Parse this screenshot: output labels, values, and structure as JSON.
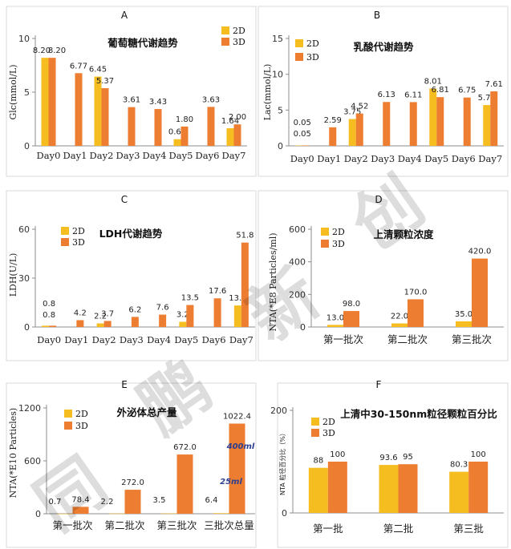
{
  "colors": {
    "series_2d": "#f5bd1f",
    "series_3d": "#ed7d31"
  },
  "watermark": "同 鹏 新 创",
  "chart_data": [
    {
      "id": "A",
      "panel_label": "A",
      "type": "bar",
      "title": "葡萄糖代谢趋势",
      "ylabel": "Glc(mmol/L)",
      "xlabel": "",
      "ylim": [
        0,
        10
      ],
      "yticks": [
        0,
        5,
        10
      ],
      "categories": [
        "Day0",
        "Day1",
        "Day2",
        "Day3",
        "Day4",
        "Day5",
        "Day6",
        "Day7"
      ],
      "series": [
        {
          "name": "2D",
          "values": [
            8.2,
            null,
            6.45,
            null,
            null,
            0.62,
            null,
            1.64
          ],
          "labels": [
            "8.20",
            "",
            "6.45",
            "",
            "",
            "0.62",
            "",
            "1.64"
          ]
        },
        {
          "name": "3D",
          "values": [
            8.2,
            6.77,
            5.37,
            3.61,
            3.43,
            1.8,
            3.63,
            2.0
          ],
          "labels": [
            "8.20",
            "6.77",
            "5.37",
            "3.61",
            "3.43",
            "1.80",
            "3.63",
            "2.00"
          ]
        }
      ],
      "legend": "top-right",
      "grid": false
    },
    {
      "id": "B",
      "panel_label": "B",
      "type": "bar",
      "title": "乳酸代谢趋势",
      "ylabel": "Lac(mmol/L)",
      "xlabel": "",
      "ylim": [
        0,
        15
      ],
      "yticks": [
        0,
        5,
        10,
        15
      ],
      "categories": [
        "Day0",
        "Day1",
        "Day2",
        "Day3",
        "Day4",
        "Day5",
        "Day6",
        "Day7"
      ],
      "series": [
        {
          "name": "2D",
          "values": [
            0.05,
            null,
            3.75,
            null,
            null,
            8.01,
            null,
            5.7
          ],
          "labels": [
            "0.05",
            "",
            "3.75",
            "",
            "",
            "8.01",
            "",
            "5.70"
          ]
        },
        {
          "name": "3D",
          "values": [
            0.05,
            2.59,
            4.52,
            6.13,
            6.11,
            6.81,
            6.75,
            7.61
          ],
          "labels": [
            "0.05",
            "2.59",
            "4.52",
            "6.13",
            "6.11",
            "6.81",
            "6.75",
            "7.61"
          ]
        }
      ],
      "legend": "top-left",
      "grid": false
    },
    {
      "id": "C",
      "panel_label": "C",
      "type": "bar",
      "title": "LDH代谢趋势",
      "ylabel": "LDH(U/L)",
      "xlabel": "",
      "ylim": [
        0,
        60
      ],
      "yticks": [
        0,
        30,
        60
      ],
      "categories": [
        "Day0",
        "Day1",
        "Day2",
        "Day3",
        "Day4",
        "Day5",
        "Day6",
        "Day7"
      ],
      "series": [
        {
          "name": "2D",
          "values": [
            0.8,
            null,
            2.2,
            null,
            null,
            3.2,
            null,
            13.2
          ],
          "labels": [
            "0.8",
            "",
            "2.2",
            "",
            "",
            "3.2",
            "",
            "13.2"
          ]
        },
        {
          "name": "3D",
          "values": [
            0.8,
            4.2,
            3.7,
            6.2,
            7.6,
            13.5,
            17.6,
            51.8
          ],
          "labels": [
            "0.8",
            "4.2",
            "3.7",
            "6.2",
            "7.6",
            "13.5",
            "17.6",
            "51.8"
          ]
        }
      ],
      "legend": "top-left",
      "grid": false
    },
    {
      "id": "D",
      "panel_label": "D",
      "type": "bar",
      "title": "上清颗粒浓度",
      "ylabel": "NTA(*E8 Particles/ml)",
      "xlabel": "",
      "ylim": [
        0,
        600
      ],
      "yticks": [
        0,
        200,
        400,
        600
      ],
      "categories": [
        "第一批次",
        "第二批次",
        "第三批次"
      ],
      "series": [
        {
          "name": "2D",
          "values": [
            13.0,
            22.0,
            35.0
          ],
          "labels": [
            "13.0",
            "22.0",
            "35.0"
          ]
        },
        {
          "name": "3D",
          "values": [
            98.0,
            170.0,
            420.0
          ],
          "labels": [
            "98.0",
            "170.0",
            "420.0"
          ]
        }
      ],
      "legend": "top-left",
      "grid": false
    },
    {
      "id": "E",
      "panel_label": "E",
      "type": "bar",
      "title": "外泌体总产量",
      "ylabel": "NTA(*E10 Particles)",
      "xlabel": "",
      "ylim": [
        0,
        1200
      ],
      "yticks": [
        0,
        600,
        1200
      ],
      "categories": [
        "第一批次",
        "第二批次",
        "第三批次",
        "三批次总量"
      ],
      "series": [
        {
          "name": "2D",
          "values": [
            0.7,
            2.2,
            3.5,
            6.4
          ],
          "labels": [
            "0.7",
            "2.2",
            "3.5",
            "6.4"
          ]
        },
        {
          "name": "3D",
          "values": [
            78.4,
            272.0,
            672.0,
            1022.4
          ],
          "labels": [
            "78.4",
            "272.0",
            "672.0",
            "1022.4"
          ]
        }
      ],
      "annotations": [
        "400ml",
        "25ml"
      ],
      "legend": "top-left",
      "grid": false
    },
    {
      "id": "F",
      "panel_label": "F",
      "type": "bar",
      "title": "上清中30-150nm粒径颗粒百分比",
      "ylabel": "NTA 粒径百分比（%）",
      "xlabel": "",
      "ylim": [
        0,
        200
      ],
      "yticks": [
        0,
        200
      ],
      "categories": [
        "第一批",
        "第二批",
        "第三批"
      ],
      "series": [
        {
          "name": "2D",
          "values": [
            88,
            93.6,
            80.3
          ],
          "labels": [
            "88",
            "93.6",
            "80.3"
          ]
        },
        {
          "name": "3D",
          "values": [
            100,
            95,
            100
          ],
          "labels": [
            "100",
            "95",
            "100"
          ]
        }
      ],
      "legend": "top-left",
      "grid": false
    }
  ]
}
